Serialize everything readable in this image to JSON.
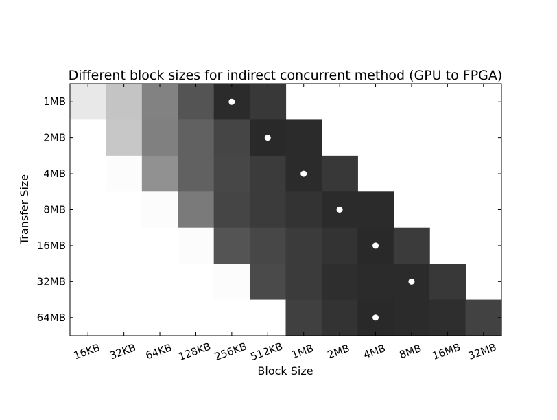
{
  "chart_data": {
    "type": "heatmap",
    "title": "Different block sizes for indirect concurrent method (GPU to FPGA)",
    "xlabel": "Block Size",
    "ylabel": "Transfer Size",
    "x_categories": [
      "16KB",
      "32KB",
      "64KB",
      "128KB",
      "256KB",
      "512KB",
      "1MB",
      "2MB",
      "4MB",
      "8MB",
      "16MB",
      "32MB"
    ],
    "y_categories": [
      "1MB",
      "2MB",
      "4MB",
      "8MB",
      "16MB",
      "32MB",
      "64MB"
    ],
    "colormap": "grayscale (dark = high)",
    "values": [
      [
        0.09,
        0.23,
        0.49,
        0.67,
        0.83,
        0.78,
        null,
        null,
        null,
        null,
        null,
        null
      ],
      [
        0.0,
        0.22,
        0.5,
        0.62,
        0.73,
        0.84,
        0.83,
        null,
        null,
        null,
        null,
        null
      ],
      [
        0.0,
        0.01,
        0.43,
        0.62,
        0.72,
        0.77,
        0.83,
        0.78,
        null,
        null,
        null,
        null
      ],
      [
        0.0,
        0.0,
        0.01,
        0.52,
        0.73,
        0.77,
        0.8,
        0.83,
        0.83,
        null,
        null,
        null
      ],
      [
        0.0,
        0.0,
        0.0,
        0.01,
        0.67,
        0.72,
        0.77,
        0.8,
        0.84,
        0.77,
        null,
        null
      ],
      [
        0.0,
        0.0,
        0.0,
        0.0,
        0.01,
        0.71,
        0.77,
        0.82,
        0.83,
        0.83,
        0.78,
        null
      ],
      [
        0.0,
        0.0,
        0.0,
        0.0,
        0.0,
        0.0,
        0.75,
        0.8,
        0.84,
        0.83,
        0.82,
        0.74
      ]
    ],
    "best_markers": [
      {
        "x": "256KB",
        "y": "1MB"
      },
      {
        "x": "512KB",
        "y": "2MB"
      },
      {
        "x": "1MB",
        "y": "4MB"
      },
      {
        "x": "2MB",
        "y": "8MB"
      },
      {
        "x": "4MB",
        "y": "16MB"
      },
      {
        "x": "8MB",
        "y": "32MB"
      },
      {
        "x": "4MB",
        "y": "64MB"
      }
    ],
    "grid": false,
    "legend": "none"
  }
}
